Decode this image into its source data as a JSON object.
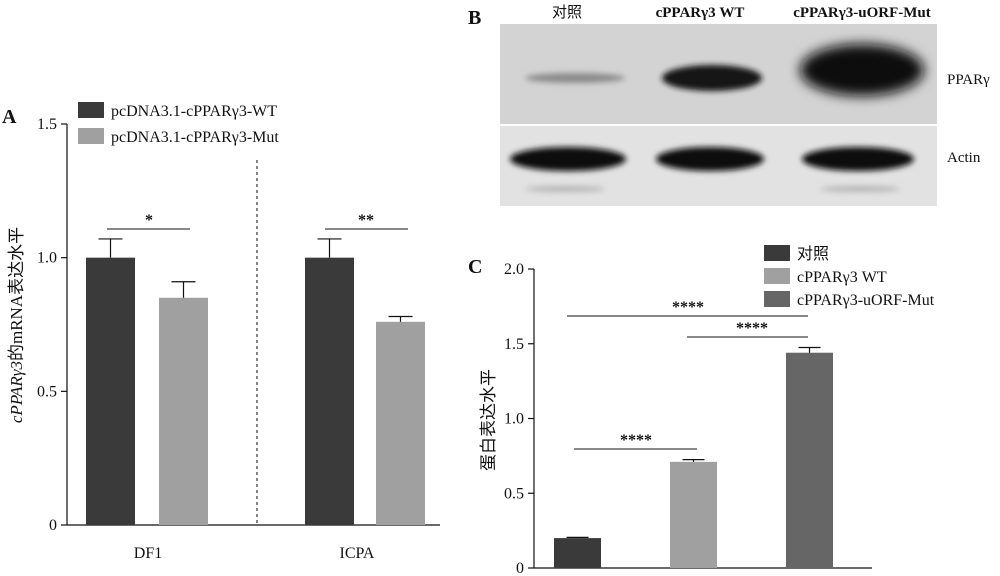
{
  "panels": {
    "A": "A",
    "B": "B",
    "C": "C"
  },
  "chart_data": [
    {
      "id": "A",
      "type": "bar",
      "title": "",
      "xlabel": "",
      "ylabel_italic": "cPPARγ3",
      "ylabel_rest": "的mRNA表达水平",
      "ylim": [
        0,
        1.5
      ],
      "yticks": [
        "0",
        "0.5",
        "1.0",
        "1.5"
      ],
      "categories": [
        "DF1",
        "ICPA"
      ],
      "series": [
        {
          "name": "pcDNA3.1-cPPARγ3-WT",
          "color": "#3a3a3a",
          "values": [
            1.0,
            1.0
          ],
          "errors": [
            0.07,
            0.07
          ]
        },
        {
          "name": "pcDNA3.1-cPPARγ3-Mut",
          "color": "#a0a0a0",
          "values": [
            0.85,
            0.76
          ],
          "errors": [
            0.06,
            0.02
          ]
        }
      ],
      "significance": [
        "*",
        "**"
      ],
      "grid": false,
      "legend": "top-left"
    },
    {
      "id": "C",
      "type": "bar",
      "title": "",
      "xlabel": "",
      "ylabel": "蛋白表达水平",
      "ylim": [
        0,
        2.0
      ],
      "yticks": [
        "0",
        "0.5",
        "1.0",
        "1.5",
        "2.0"
      ],
      "categories": [
        "对照",
        "cPPARγ3 WT",
        "cPPARγ3-uORF-Mut"
      ],
      "values": [
        0.2,
        0.71,
        1.44
      ],
      "errors": [
        0.005,
        0.015,
        0.035
      ],
      "colors": [
        "#3a3a3a",
        "#a0a0a0",
        "#666666"
      ],
      "significance": [
        "****",
        "****",
        "****"
      ],
      "grid": false,
      "legend": "top-right"
    }
  ],
  "blot": {
    "columns": [
      "对照",
      "cPPARγ3 WT",
      "cPPARγ3-uORF-Mut"
    ],
    "rows": [
      "PPARγ",
      "Actin"
    ]
  }
}
